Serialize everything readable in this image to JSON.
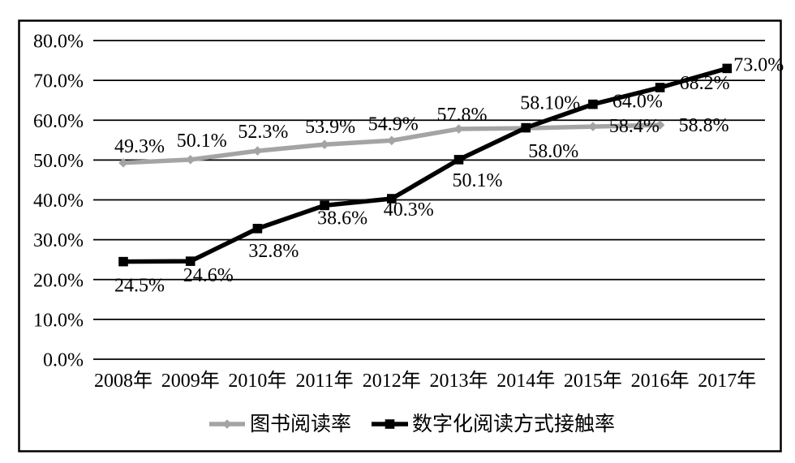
{
  "chart_data": {
    "type": "line",
    "title": "",
    "background": "#ffffff",
    "border_color": "#000000",
    "grid": true,
    "legend_position": "bottom",
    "categories": [
      "2008年",
      "2009年",
      "2010年",
      "2011年",
      "2012年",
      "2013年",
      "2014年",
      "2015年",
      "2016年",
      "2017年"
    ],
    "y_axis": {
      "min": 0,
      "max": 80,
      "ticks": [
        {
          "value": 0,
          "label": "0.0%"
        },
        {
          "value": 10,
          "label": "10.0%"
        },
        {
          "value": 20,
          "label": "20.0%"
        },
        {
          "value": 30,
          "label": "30.0%"
        },
        {
          "value": 40,
          "label": "40.0%"
        },
        {
          "value": 50,
          "label": "50.0%"
        },
        {
          "value": 60,
          "label": "60.0%"
        },
        {
          "value": 70,
          "label": "70.0%"
        },
        {
          "value": 80,
          "label": "80.0%"
        }
      ]
    },
    "series": [
      {
        "name": "图书阅读率",
        "color": "#a4a4a4",
        "marker": "diamond",
        "values": [
          49.3,
          50.1,
          52.3,
          53.9,
          54.9,
          57.8,
          58.0,
          58.4,
          58.8,
          null
        ],
        "labels": [
          "49.3%",
          "50.1%",
          "52.3%",
          "53.9%",
          "54.9%",
          "57.8%",
          "58.0%",
          "58.4%",
          "58.8%",
          ""
        ],
        "label_offsets": [
          [
            20,
            -13
          ],
          [
            14,
            -16
          ],
          [
            7,
            -16
          ],
          [
            7,
            -14
          ],
          [
            2,
            -13
          ],
          [
            4,
            -10
          ],
          [
            34,
            36
          ],
          [
            51,
            7
          ],
          [
            54,
            8
          ],
          [
            0,
            0
          ]
        ]
      },
      {
        "name": "数字化阅读方式接触率",
        "color": "#000000",
        "marker": "square",
        "values": [
          24.5,
          24.6,
          32.8,
          38.6,
          40.3,
          50.1,
          58.1,
          64.0,
          68.2,
          73.0
        ],
        "labels": [
          "24.5%",
          "24.6%",
          "32.8%",
          "38.6%",
          "40.3%",
          "50.1%",
          "58.10%",
          "64.0%",
          "68.2%",
          "73.0%"
        ],
        "label_offsets": [
          [
            20,
            37
          ],
          [
            22,
            25
          ],
          [
            20,
            35
          ],
          [
            22,
            23
          ],
          [
            21,
            21
          ],
          [
            23,
            33
          ],
          [
            30,
            -23
          ],
          [
            55,
            4
          ],
          [
            55,
            2
          ],
          [
            39,
            3
          ]
        ]
      }
    ]
  }
}
